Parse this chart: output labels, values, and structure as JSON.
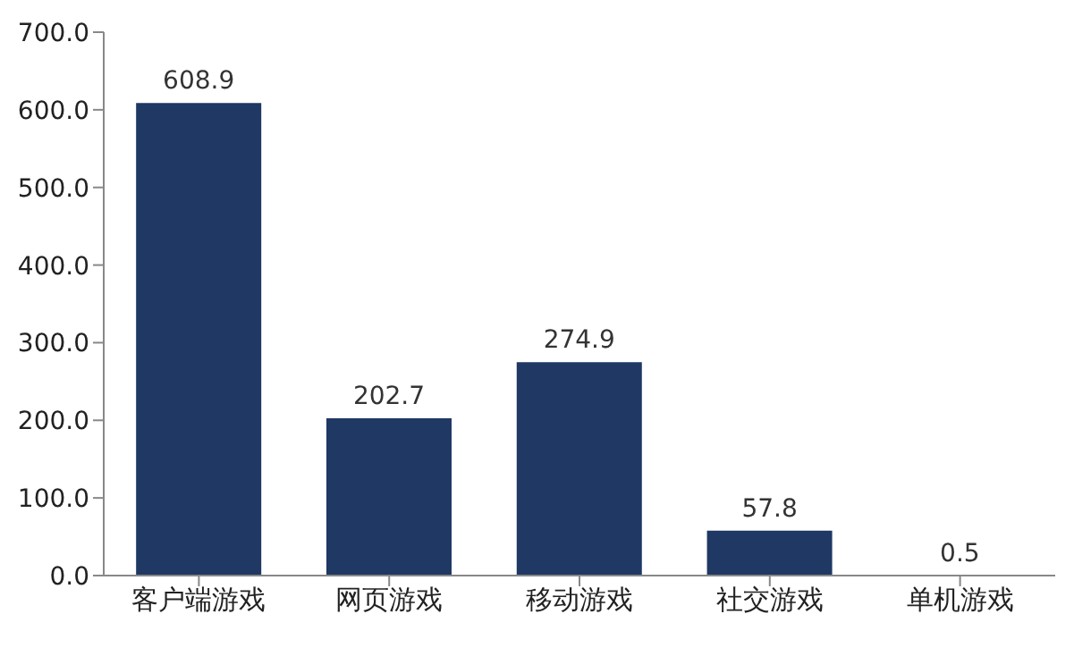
{
  "chart_data": {
    "type": "bar",
    "categories": [
      "客户端游戏",
      "网页游戏",
      "移动游戏",
      "社交游戏",
      "单机游戏"
    ],
    "values": [
      608.9,
      202.7,
      274.9,
      57.8,
      0.5
    ],
    "color": "#1f3864",
    "data_labels": true,
    "grid": false,
    "legend": false,
    "ylim": [
      0,
      700
    ],
    "yticks": [
      {
        "value": 0,
        "label": "0.0"
      },
      {
        "value": 100,
        "label": "100.0"
      },
      {
        "value": 200,
        "label": "200.0"
      },
      {
        "value": 300,
        "label": "300.0"
      },
      {
        "value": 400,
        "label": "400.0"
      },
      {
        "value": 500,
        "label": "500.0"
      },
      {
        "value": 600,
        "label": "600.0"
      },
      {
        "value": 700,
        "label": "700.0"
      }
    ]
  }
}
